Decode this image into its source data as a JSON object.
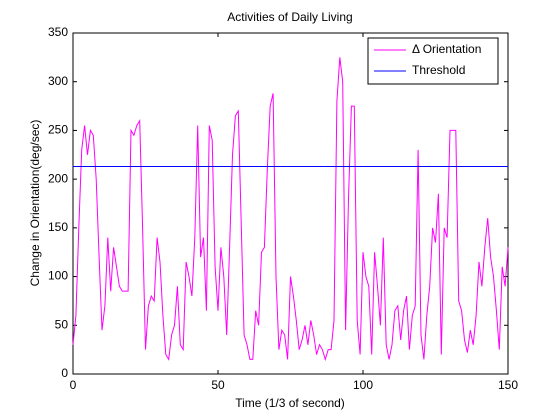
{
  "chart_data": {
    "type": "line",
    "title": "Activities of Daily Living",
    "xlabel": "Time (1/3 of second)",
    "ylabel": "Change in Orientation(deg/sec)",
    "xlim": [
      0,
      150
    ],
    "xticks": [
      0,
      50,
      100,
      150
    ],
    "ylim": [
      0,
      350
    ],
    "yticks": [
      0,
      50,
      100,
      150,
      200,
      250,
      300,
      350
    ],
    "legend": "top-right",
    "x": [
      0,
      1,
      2,
      3,
      4,
      5,
      6,
      7,
      8,
      9,
      10,
      11,
      12,
      13,
      14,
      15,
      16,
      17,
      18,
      19,
      20,
      21,
      22,
      23,
      24,
      25,
      26,
      27,
      28,
      29,
      30,
      31,
      32,
      33,
      34,
      35,
      36,
      37,
      38,
      39,
      40,
      41,
      42,
      43,
      44,
      45,
      46,
      47,
      48,
      49,
      50,
      51,
      52,
      53,
      54,
      55,
      56,
      57,
      58,
      59,
      60,
      61,
      62,
      63,
      64,
      65,
      66,
      67,
      68,
      69,
      70,
      71,
      72,
      73,
      74,
      75,
      76,
      77,
      78,
      79,
      80,
      81,
      82,
      83,
      84,
      85,
      86,
      87,
      88,
      89,
      90,
      91,
      92,
      93,
      94,
      95,
      96,
      97,
      98,
      99,
      100,
      101,
      102,
      103,
      104,
      105,
      106,
      107,
      108,
      109,
      110,
      111,
      112,
      113,
      114,
      115,
      116,
      117,
      118,
      119,
      120,
      121,
      122,
      123,
      124,
      125,
      126,
      127,
      128,
      129,
      130,
      131,
      132,
      133,
      134,
      135,
      136,
      137,
      138,
      139,
      140,
      141,
      142,
      143,
      144,
      145,
      146,
      147,
      148,
      149,
      150
    ],
    "series": [
      {
        "name": "Δ Orientation",
        "color": "#ff00ff",
        "values": [
          30,
          60,
          150,
          230,
          255,
          225,
          250,
          245,
          200,
          120,
          45,
          70,
          140,
          85,
          130,
          110,
          90,
          85,
          85,
          85,
          250,
          245,
          255,
          260,
          150,
          25,
          70,
          80,
          75,
          140,
          115,
          60,
          20,
          15,
          40,
          50,
          90,
          30,
          25,
          115,
          100,
          80,
          140,
          255,
          120,
          140,
          65,
          255,
          240,
          110,
          65,
          130,
          100,
          40,
          130,
          225,
          265,
          270,
          155,
          40,
          30,
          15,
          15,
          65,
          50,
          125,
          130,
          210,
          275,
          288,
          100,
          25,
          45,
          40,
          15,
          100,
          80,
          55,
          25,
          35,
          50,
          30,
          55,
          40,
          20,
          30,
          25,
          15,
          25,
          25,
          55,
          280,
          325,
          300,
          45,
          180,
          275,
          275,
          55,
          20,
          125,
          100,
          90,
          20,
          125,
          90,
          50,
          140,
          30,
          15,
          30,
          65,
          70,
          35,
          65,
          80,
          25,
          60,
          70,
          230,
          40,
          15,
          60,
          90,
          150,
          135,
          185,
          20,
          150,
          140,
          250,
          250,
          250,
          75,
          65,
          35,
          22,
          45,
          30,
          60,
          115,
          90,
          130,
          160,
          120,
          100,
          65,
          25,
          110,
          90,
          130
        ]
      },
      {
        "name": "Threshold",
        "color": "#0000ff",
        "values": [
          213,
          213,
          213,
          213,
          213,
          213,
          213,
          213,
          213,
          213,
          213,
          213,
          213,
          213,
          213,
          213,
          213,
          213,
          213,
          213,
          213,
          213,
          213,
          213,
          213,
          213,
          213,
          213,
          213,
          213,
          213,
          213,
          213,
          213,
          213,
          213,
          213,
          213,
          213,
          213,
          213,
          213,
          213,
          213,
          213,
          213,
          213,
          213,
          213,
          213,
          213,
          213,
          213,
          213,
          213,
          213,
          213,
          213,
          213,
          213,
          213,
          213,
          213,
          213,
          213,
          213,
          213,
          213,
          213,
          213,
          213,
          213,
          213,
          213,
          213,
          213,
          213,
          213,
          213,
          213,
          213,
          213,
          213,
          213,
          213,
          213,
          213,
          213,
          213,
          213,
          213,
          213,
          213,
          213,
          213,
          213,
          213,
          213,
          213,
          213,
          213,
          213,
          213,
          213,
          213,
          213,
          213,
          213,
          213,
          213,
          213,
          213,
          213,
          213,
          213,
          213,
          213,
          213,
          213,
          213,
          213,
          213,
          213,
          213,
          213,
          213,
          213,
          213,
          213,
          213,
          213,
          213,
          213,
          213,
          213,
          213,
          213,
          213,
          213,
          213,
          213,
          213,
          213,
          213,
          213,
          213,
          213,
          213,
          213,
          213,
          213
        ]
      }
    ]
  }
}
